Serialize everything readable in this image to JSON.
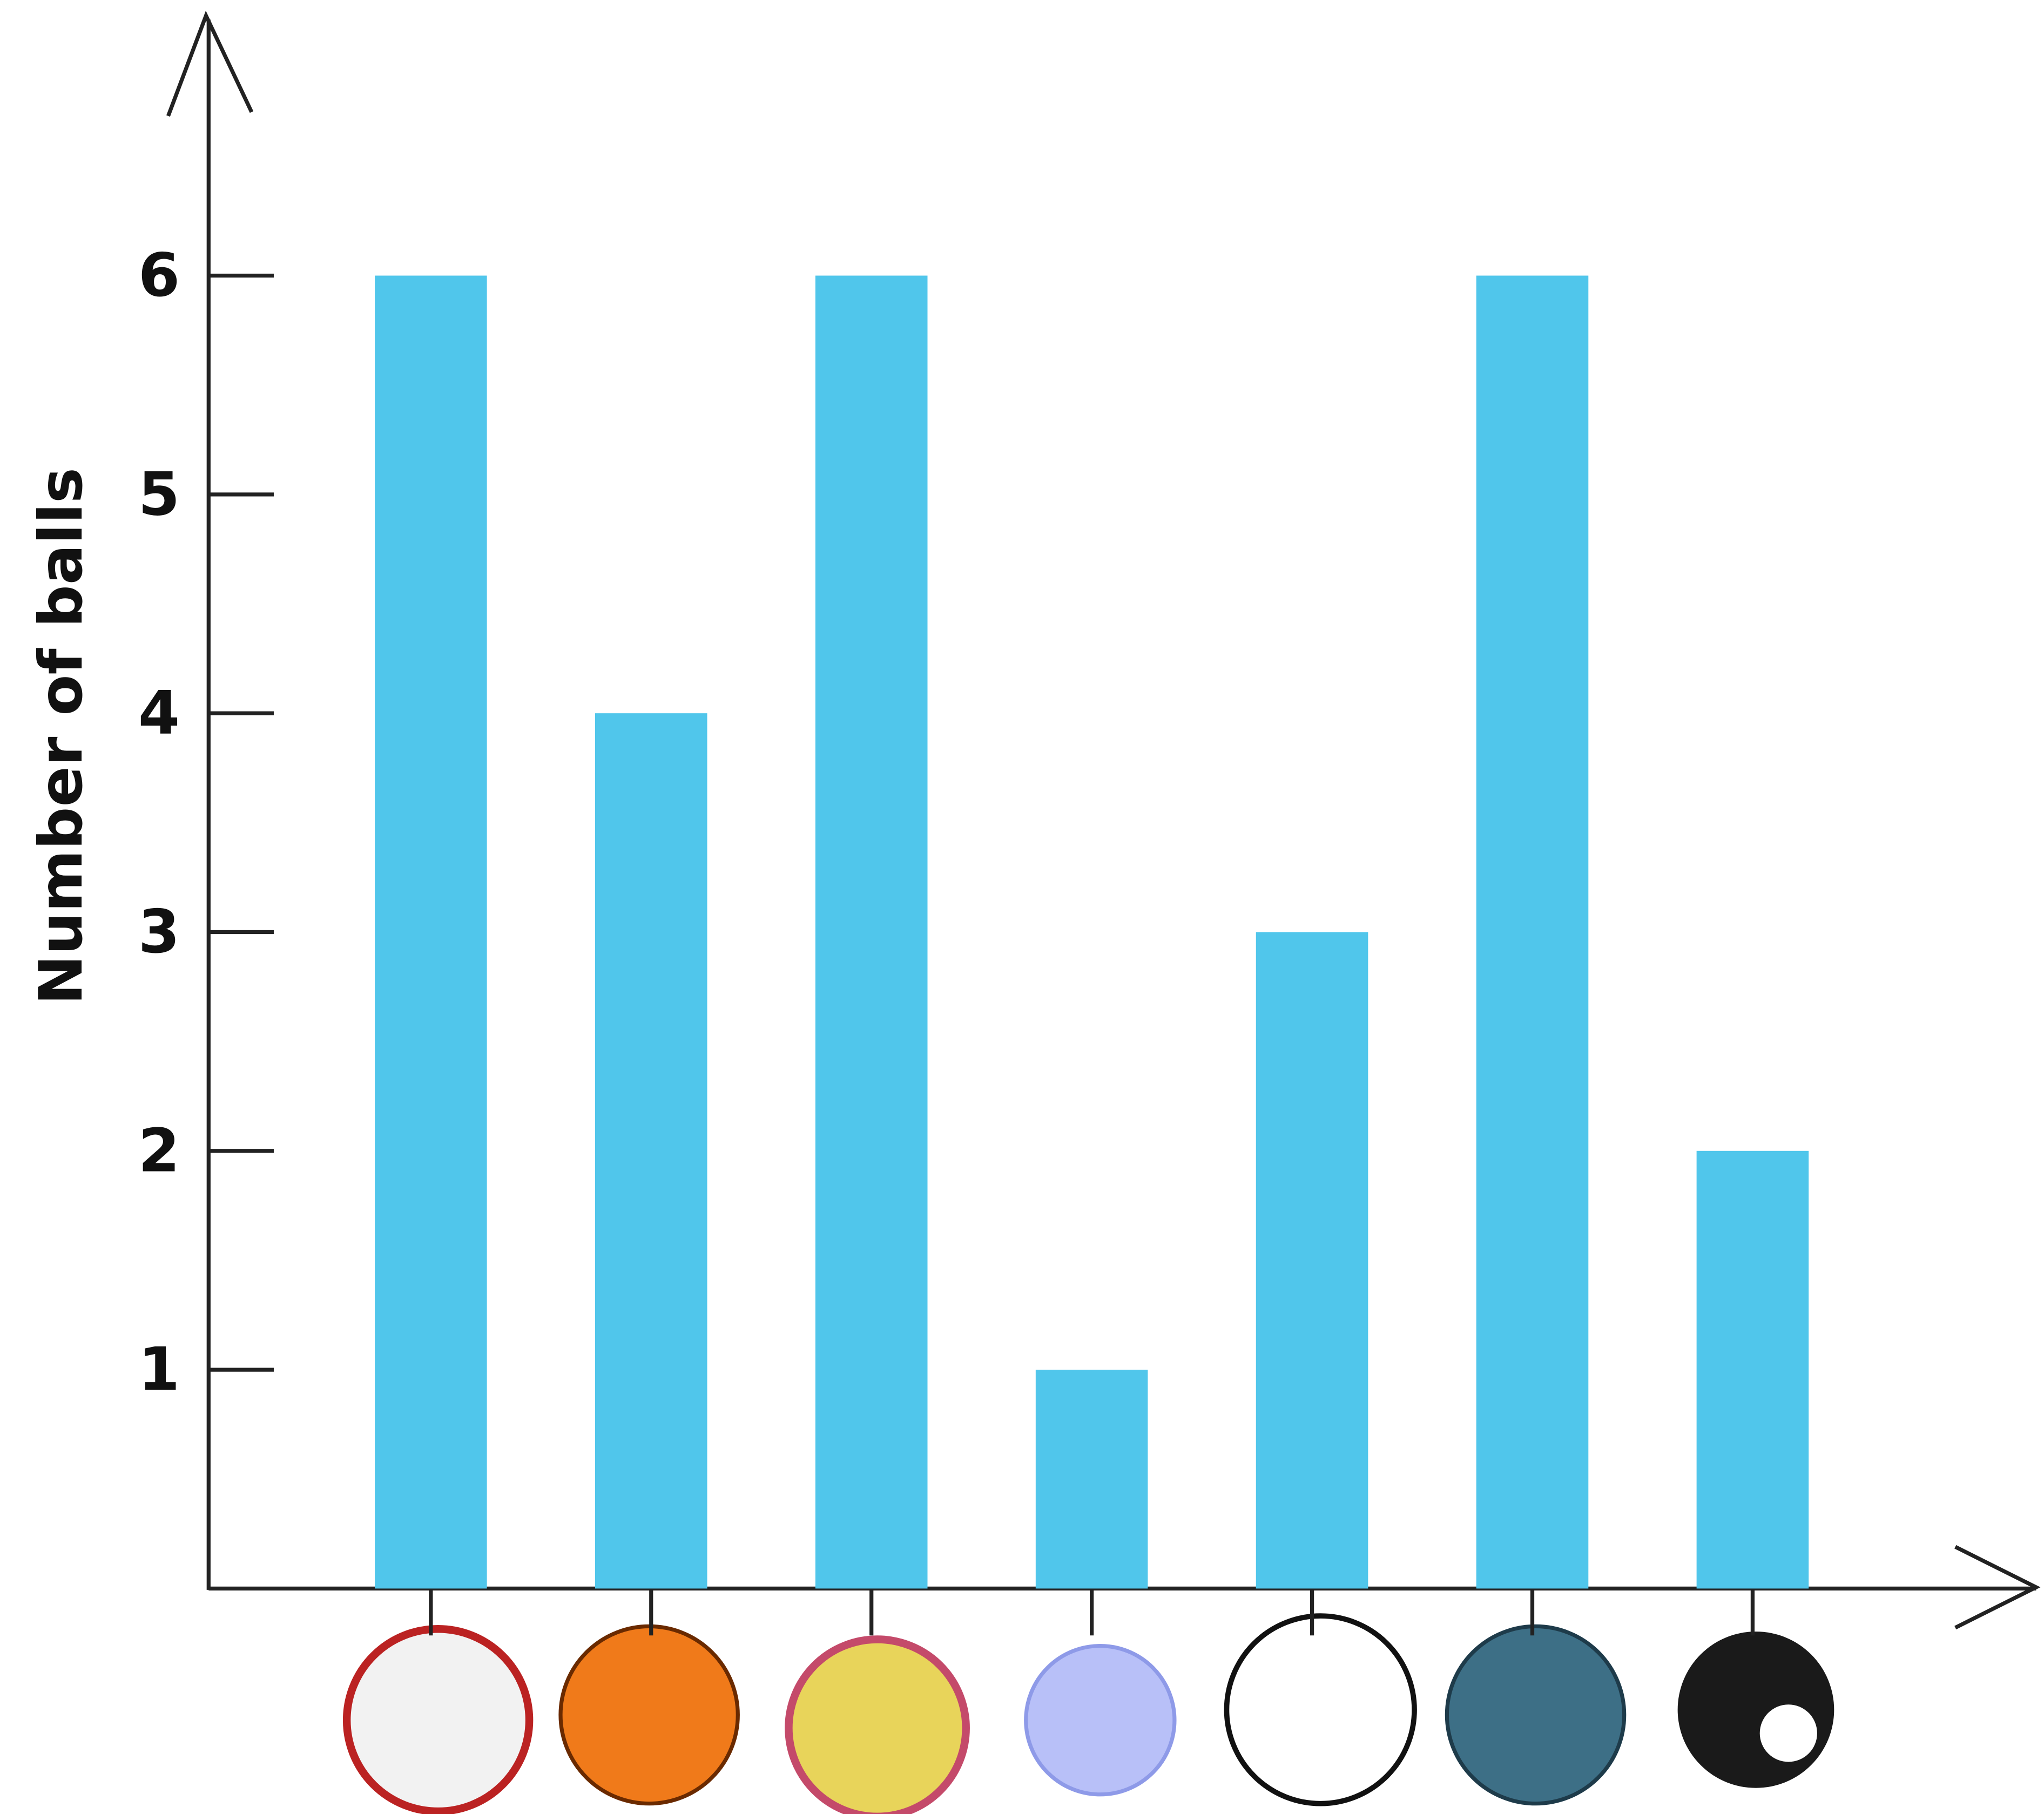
{
  "chart_data": {
    "type": "bar",
    "y_label": "Number of balls",
    "categories": [
      null,
      null,
      null,
      null,
      null,
      null,
      null
    ],
    "values": [
      6,
      4,
      6,
      1,
      3,
      6,
      2
    ],
    "color": "#50c6eb",
    "ylim": [
      0,
      7.2
    ],
    "yticks": [
      1,
      2,
      3,
      4,
      5,
      6
    ]
  }
}
